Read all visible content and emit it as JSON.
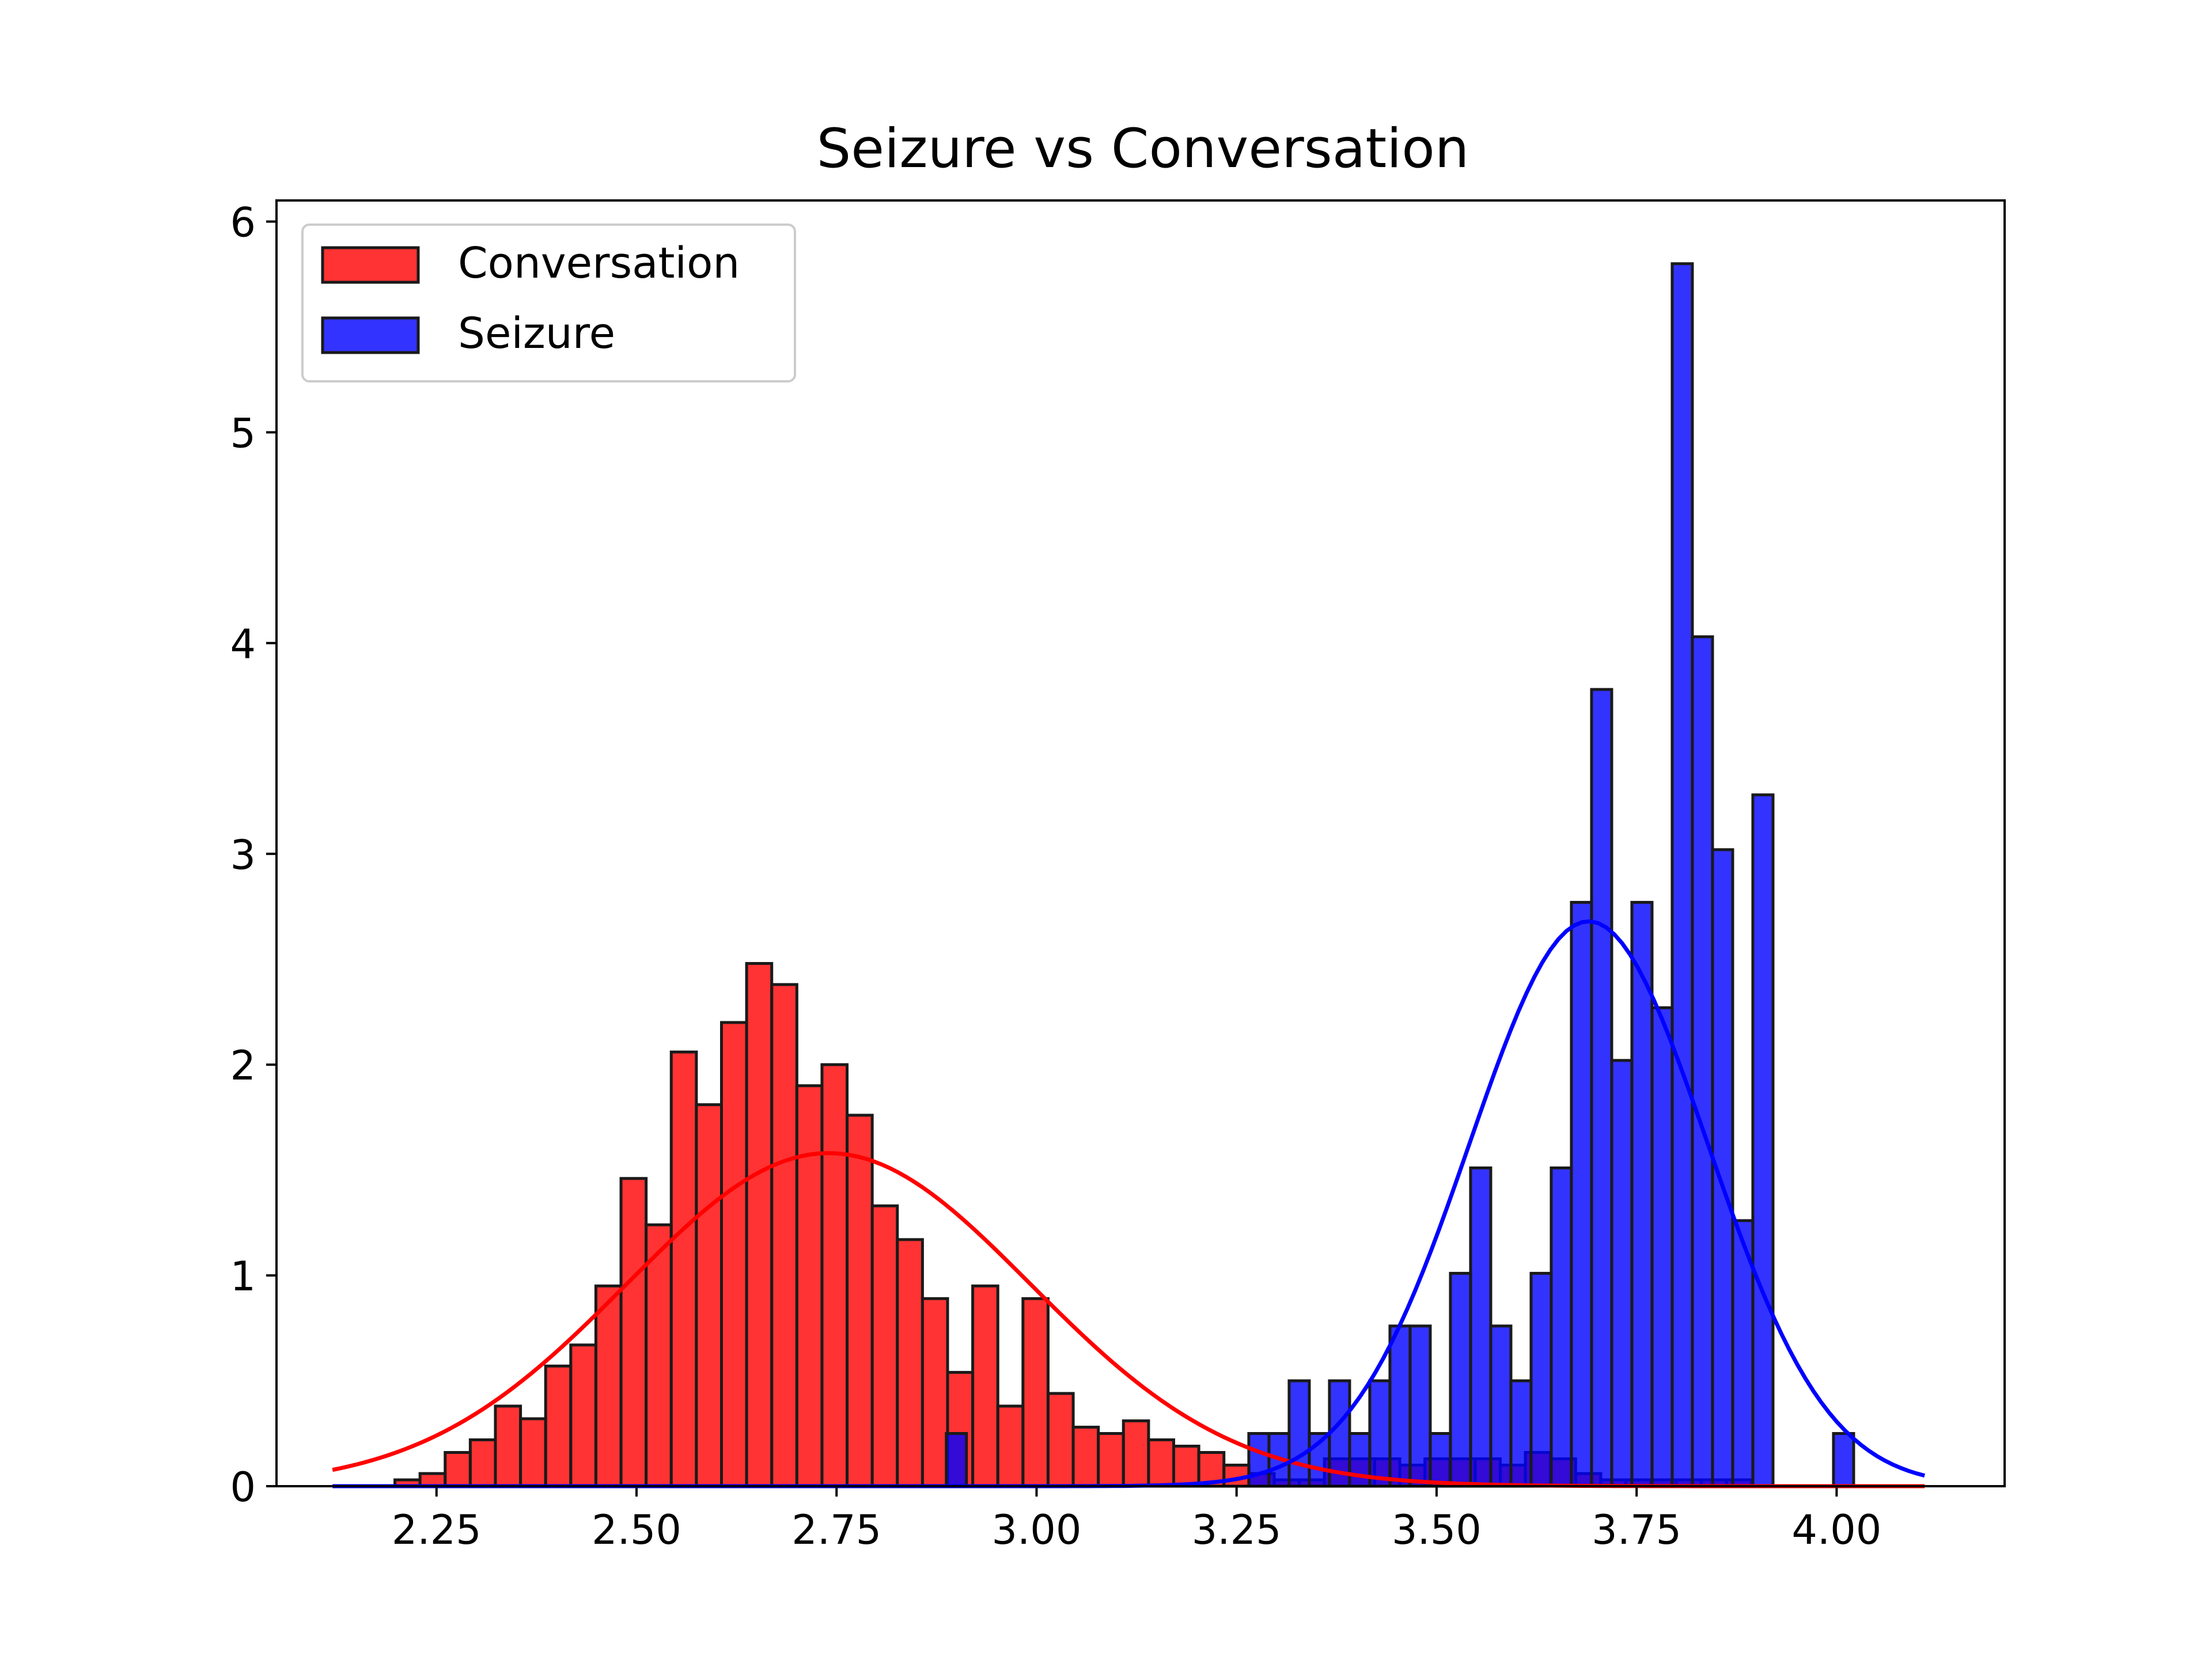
{
  "chart_data": {
    "type": "bar",
    "title": "Seizure vs Conversation",
    "xlabel": "",
    "ylabel": "",
    "xlim": [
      2.05,
      4.21
    ],
    "ylim": [
      0,
      6.1
    ],
    "x_ticks": [
      "2.25",
      "2.50",
      "2.75",
      "3.00",
      "3.25",
      "3.50",
      "3.75",
      "4.00"
    ],
    "y_ticks": [
      "0",
      "1",
      "2",
      "3",
      "4",
      "5",
      "6"
    ],
    "grid": false,
    "legend_position": "top-left",
    "colors": {
      "conversation": "#ff0000",
      "seizure": "#0000ff",
      "edge": "#1a1a1a"
    },
    "series": [
      {
        "name": "Conversation",
        "color": "#ff0000",
        "bin_width": 0.0314,
        "bins": [
          {
            "x": 2.2137,
            "y": 0.03
          },
          {
            "x": 2.2451,
            "y": 0.06
          },
          {
            "x": 2.2765,
            "y": 0.16
          },
          {
            "x": 2.3079,
            "y": 0.22
          },
          {
            "x": 2.3393,
            "y": 0.38
          },
          {
            "x": 2.3707,
            "y": 0.32
          },
          {
            "x": 2.4021,
            "y": 0.57
          },
          {
            "x": 2.4335,
            "y": 0.67
          },
          {
            "x": 2.4649,
            "y": 0.95
          },
          {
            "x": 2.4963,
            "y": 1.46
          },
          {
            "x": 2.5277,
            "y": 1.24
          },
          {
            "x": 2.5591,
            "y": 2.06
          },
          {
            "x": 2.5905,
            "y": 1.81
          },
          {
            "x": 2.6219,
            "y": 2.2
          },
          {
            "x": 2.6533,
            "y": 2.48
          },
          {
            "x": 2.6847,
            "y": 2.38
          },
          {
            "x": 2.7161,
            "y": 1.9
          },
          {
            "x": 2.7475,
            "y": 2.0
          },
          {
            "x": 2.7789,
            "y": 1.76
          },
          {
            "x": 2.8103,
            "y": 1.33
          },
          {
            "x": 2.8417,
            "y": 1.17
          },
          {
            "x": 2.8731,
            "y": 0.89
          },
          {
            "x": 2.9045,
            "y": 0.54
          },
          {
            "x": 2.9359,
            "y": 0.95
          },
          {
            "x": 2.9673,
            "y": 0.38
          },
          {
            "x": 2.9987,
            "y": 0.89
          },
          {
            "x": 3.0301,
            "y": 0.44
          },
          {
            "x": 3.0615,
            "y": 0.28
          },
          {
            "x": 3.0929,
            "y": 0.25
          },
          {
            "x": 3.1243,
            "y": 0.31
          },
          {
            "x": 3.1557,
            "y": 0.22
          },
          {
            "x": 3.1871,
            "y": 0.19
          },
          {
            "x": 3.2185,
            "y": 0.16
          },
          {
            "x": 3.2499,
            "y": 0.1
          },
          {
            "x": 3.2813,
            "y": 0.06
          },
          {
            "x": 3.3127,
            "y": 0.03
          },
          {
            "x": 3.3441,
            "y": 0.03
          },
          {
            "x": 3.3755,
            "y": 0.13
          },
          {
            "x": 3.4069,
            "y": 0.13
          },
          {
            "x": 3.4383,
            "y": 0.13
          },
          {
            "x": 3.4697,
            "y": 0.1
          },
          {
            "x": 3.5011,
            "y": 0.13
          },
          {
            "x": 3.5325,
            "y": 0.13
          },
          {
            "x": 3.5639,
            "y": 0.13
          },
          {
            "x": 3.5953,
            "y": 0.1
          },
          {
            "x": 3.6267,
            "y": 0.16
          },
          {
            "x": 3.6581,
            "y": 0.13
          },
          {
            "x": 3.6895,
            "y": 0.06
          },
          {
            "x": 3.7209,
            "y": 0.03
          },
          {
            "x": 3.7523,
            "y": 0.03
          },
          {
            "x": 3.7837,
            "y": 0.03
          },
          {
            "x": 3.8151,
            "y": 0.03
          },
          {
            "x": 3.8465,
            "y": 0.03
          },
          {
            "x": 3.8779,
            "y": 0.03
          }
        ],
        "fit": {
          "kind": "normal pdf",
          "mean": 2.74,
          "peak": 1.58,
          "x_range": [
            2.12,
            4.11
          ]
        }
      },
      {
        "name": "Seizure",
        "color": "#0000ff",
        "bin_width": 0.0252,
        "bins": [
          {
            "x": 2.8746,
            "y": 0.0
          },
          {
            "x": 2.8998,
            "y": 0.25
          },
          {
            "x": 3.2779,
            "y": 0.25
          },
          {
            "x": 3.3031,
            "y": 0.25
          },
          {
            "x": 3.3283,
            "y": 0.5
          },
          {
            "x": 3.3535,
            "y": 0.25
          },
          {
            "x": 3.3787,
            "y": 0.5
          },
          {
            "x": 3.4039,
            "y": 0.25
          },
          {
            "x": 3.4291,
            "y": 0.5
          },
          {
            "x": 3.4543,
            "y": 0.76
          },
          {
            "x": 3.4795,
            "y": 0.76
          },
          {
            "x": 3.5047,
            "y": 0.25
          },
          {
            "x": 3.5299,
            "y": 1.01
          },
          {
            "x": 3.5551,
            "y": 1.51
          },
          {
            "x": 3.5803,
            "y": 0.76
          },
          {
            "x": 3.6055,
            "y": 0.5
          },
          {
            "x": 3.6307,
            "y": 1.01
          },
          {
            "x": 3.6559,
            "y": 1.51
          },
          {
            "x": 3.6811,
            "y": 2.77
          },
          {
            "x": 3.7063,
            "y": 3.78
          },
          {
            "x": 3.7315,
            "y": 2.02
          },
          {
            "x": 3.7567,
            "y": 2.77
          },
          {
            "x": 3.7819,
            "y": 2.27
          },
          {
            "x": 3.8071,
            "y": 5.8
          },
          {
            "x": 3.8323,
            "y": 4.03
          },
          {
            "x": 3.8575,
            "y": 3.02
          },
          {
            "x": 3.8827,
            "y": 1.26
          },
          {
            "x": 3.9079,
            "y": 3.28
          },
          {
            "x": 4.0087,
            "y": 0.25
          }
        ],
        "fit": {
          "kind": "normal pdf",
          "mean": 3.69,
          "peak": 2.68,
          "x_range": [
            2.12,
            4.11
          ]
        }
      }
    ]
  }
}
